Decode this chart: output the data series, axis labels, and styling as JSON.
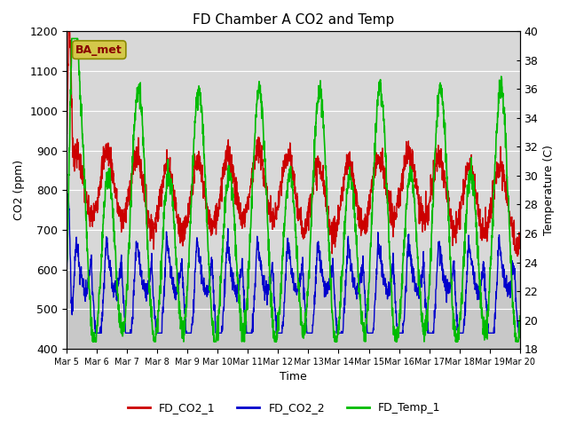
{
  "title": "FD Chamber A CO2 and Temp",
  "xlabel": "Time",
  "ylabel_left": "CO2 (ppm)",
  "ylabel_right": "Temperature (C)",
  "ylim_left": [
    400,
    1200
  ],
  "ylim_right": [
    18,
    40
  ],
  "xlim": [
    0,
    360
  ],
  "colors": {
    "co2_1": "#cc0000",
    "co2_2": "#0000cc",
    "temp_1": "#00bb00"
  },
  "legend_labels": [
    "FD_CO2_1",
    "FD_CO2_2",
    "FD_Temp_1"
  ],
  "annotation_text": "BA_met",
  "annotation_facecolor": "#d4c84a",
  "annotation_edgecolor": "#8a8a00",
  "annotation_textcolor": "#880000",
  "shade_color": "#d8d8d8",
  "shade_bottom_co2": 600,
  "shade_top_co2": 1200,
  "plot_bg": "#c8c8c8",
  "xtick_labels": [
    "Mar 5",
    "Mar 6",
    "Mar 7",
    "Mar 8",
    "Mar 9",
    "Mar 10",
    "Mar 11",
    "Mar 12",
    "Mar 13",
    "Mar 14",
    "Mar 15",
    "Mar 16",
    "Mar 17",
    "Mar 18",
    "Mar 19",
    "Mar 20"
  ],
  "xtick_positions": [
    0,
    24,
    48,
    72,
    96,
    120,
    144,
    168,
    192,
    216,
    240,
    264,
    288,
    312,
    336,
    360
  ],
  "fig_facecolor": "#ffffff",
  "linewidth_co2": 1.0,
  "linewidth_temp": 1.2
}
